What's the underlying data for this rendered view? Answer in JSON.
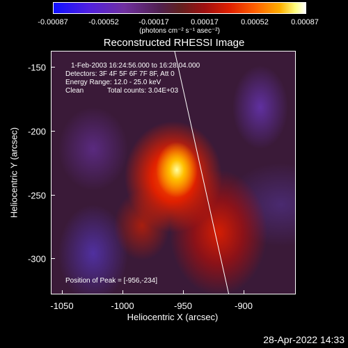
{
  "colorbar": {
    "ticks": [
      "-0.00087",
      "-0.00052",
      "-0.00017",
      "0.00017",
      "0.00052",
      "0.00087"
    ],
    "units": "(photons cm⁻² s⁻¹ asec⁻²)"
  },
  "title": "Reconstructed RHESSI Image",
  "info": {
    "time": "1-Feb-2003 16:24:56.000 to 16:28:04.000",
    "detectors": "Detectors: 3F 4F 5F 6F 7F 8F, Att 0",
    "energy": "Energy Range: 12.0 - 25.0 keV",
    "clean": "Clean",
    "counts": "Total counts: 3.04E+03",
    "peak": "Position of Peak = [-956,-234]"
  },
  "axes": {
    "x_ticks": [
      "-1050",
      "-1000",
      "-950",
      "-900"
    ],
    "y_ticks": [
      "-150",
      "-200",
      "-250",
      "-300"
    ],
    "xlabel": "Heliocentric X (arcsec)",
    "ylabel": "Heliocentric Y (arcsec)"
  },
  "timestamp": "28-Apr-2022 14:33"
}
